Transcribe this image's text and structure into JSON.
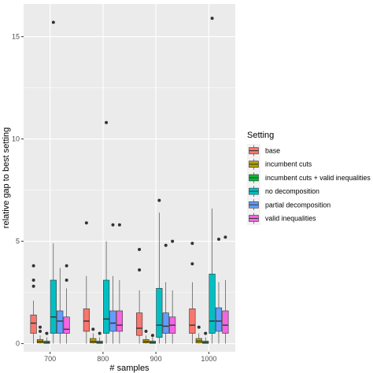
{
  "chart_data": {
    "type": "boxplot",
    "xlabel": "# samples",
    "ylabel": "relative gap to best setting",
    "categories": [
      "700",
      "800",
      "900",
      "1000"
    ],
    "yticks": [
      0,
      5,
      10,
      15
    ],
    "ylim": [
      -0.4,
      16.6
    ],
    "grid": true,
    "legend": {
      "title": "Setting",
      "placement": "right",
      "entries": [
        "base",
        "incumbent cuts",
        "incumbent cuts + valid inequalities",
        "no decomposition",
        "partial decomposition",
        "valid inequalities"
      ]
    },
    "colors": [
      "#F8766D",
      "#B79F00",
      "#00BA38",
      "#00BFC4",
      "#619CFF",
      "#F564E3"
    ],
    "series": [
      {
        "name": "base",
        "boxes": [
          {
            "q1": 0.5,
            "median": 1.0,
            "q3": 1.4,
            "low": 0.0,
            "high": 2.1,
            "outliers": [
              2.8,
              3.1,
              3.8
            ]
          },
          {
            "q1": 0.6,
            "median": 1.1,
            "q3": 1.7,
            "low": 0.0,
            "high": 3.3,
            "outliers": [
              5.9
            ]
          },
          {
            "q1": 0.4,
            "median": 0.75,
            "q3": 1.5,
            "low": 0.0,
            "high": 2.6,
            "outliers": [
              3.6,
              4.6
            ]
          },
          {
            "q1": 0.5,
            "median": 0.9,
            "q3": 1.7,
            "low": 0.0,
            "high": 3.0,
            "outliers": [
              3.9,
              4.9
            ]
          }
        ]
      },
      {
        "name": "incumbent cuts",
        "boxes": [
          {
            "q1": 0.03,
            "median": 0.1,
            "q3": 0.2,
            "low": 0.0,
            "high": 0.4,
            "outliers": [
              0.6,
              0.8
            ]
          },
          {
            "q1": 0.03,
            "median": 0.1,
            "q3": 0.25,
            "low": 0.0,
            "high": 0.5,
            "outliers": [
              0.7
            ]
          },
          {
            "q1": 0.03,
            "median": 0.1,
            "q3": 0.2,
            "low": 0.0,
            "high": 0.4,
            "outliers": [
              0.6
            ]
          },
          {
            "q1": 0.03,
            "median": 0.12,
            "q3": 0.25,
            "low": 0.0,
            "high": 0.5,
            "outliers": [
              0.8
            ]
          }
        ]
      },
      {
        "name": "incumbent cuts + valid inequalities",
        "boxes": [
          {
            "q1": 0.01,
            "median": 0.05,
            "q3": 0.12,
            "low": 0.0,
            "high": 0.3,
            "outliers": [
              0.5
            ]
          },
          {
            "q1": 0.01,
            "median": 0.05,
            "q3": 0.12,
            "low": 0.0,
            "high": 0.3,
            "outliers": [
              0.5
            ]
          },
          {
            "q1": 0.01,
            "median": 0.05,
            "q3": 0.12,
            "low": 0.0,
            "high": 0.3,
            "outliers": [
              0.4
            ]
          },
          {
            "q1": 0.01,
            "median": 0.05,
            "q3": 0.12,
            "low": 0.0,
            "high": 0.3,
            "outliers": [
              0.5
            ]
          }
        ]
      },
      {
        "name": "no decomposition",
        "boxes": [
          {
            "q1": 0.5,
            "median": 1.3,
            "q3": 3.1,
            "low": 0.0,
            "high": 4.9,
            "outliers": [
              15.7
            ]
          },
          {
            "q1": 0.5,
            "median": 1.2,
            "q3": 3.1,
            "low": 0.0,
            "high": 5.0,
            "outliers": [
              10.8
            ]
          },
          {
            "q1": 0.3,
            "median": 0.9,
            "q3": 2.7,
            "low": 0.0,
            "high": 6.4,
            "outliers": [
              7.0
            ]
          },
          {
            "q1": 0.5,
            "median": 1.1,
            "q3": 3.4,
            "low": 0.0,
            "high": 6.6,
            "outliers": [
              15.9
            ]
          }
        ]
      },
      {
        "name": "partial decomposition",
        "boxes": [
          {
            "q1": 0.5,
            "median": 1.1,
            "q3": 1.6,
            "low": 0.0,
            "high": 3.7,
            "outliers": []
          },
          {
            "q1": 0.6,
            "median": 1.0,
            "q3": 1.6,
            "low": 0.0,
            "high": 3.3,
            "outliers": [
              5.8
            ]
          },
          {
            "q1": 0.5,
            "median": 0.85,
            "q3": 1.5,
            "low": 0.0,
            "high": 3.0,
            "outliers": [
              4.8
            ]
          },
          {
            "q1": 0.6,
            "median": 1.1,
            "q3": 1.75,
            "low": 0.0,
            "high": 3.0,
            "outliers": [
              5.1
            ]
          }
        ]
      },
      {
        "name": "valid inequalities",
        "boxes": [
          {
            "q1": 0.5,
            "median": 0.7,
            "q3": 1.3,
            "low": 0.0,
            "high": 2.7,
            "outliers": [
              3.1,
              3.8
            ]
          },
          {
            "q1": 0.6,
            "median": 0.9,
            "q3": 1.6,
            "low": 0.0,
            "high": 3.1,
            "outliers": [
              5.8
            ]
          },
          {
            "q1": 0.5,
            "median": 0.9,
            "q3": 1.3,
            "low": 0.0,
            "high": 2.6,
            "outliers": [
              5.0
            ]
          },
          {
            "q1": 0.5,
            "median": 0.9,
            "q3": 1.6,
            "low": 0.0,
            "high": 3.1,
            "outliers": [
              5.2
            ]
          }
        ]
      }
    ]
  }
}
